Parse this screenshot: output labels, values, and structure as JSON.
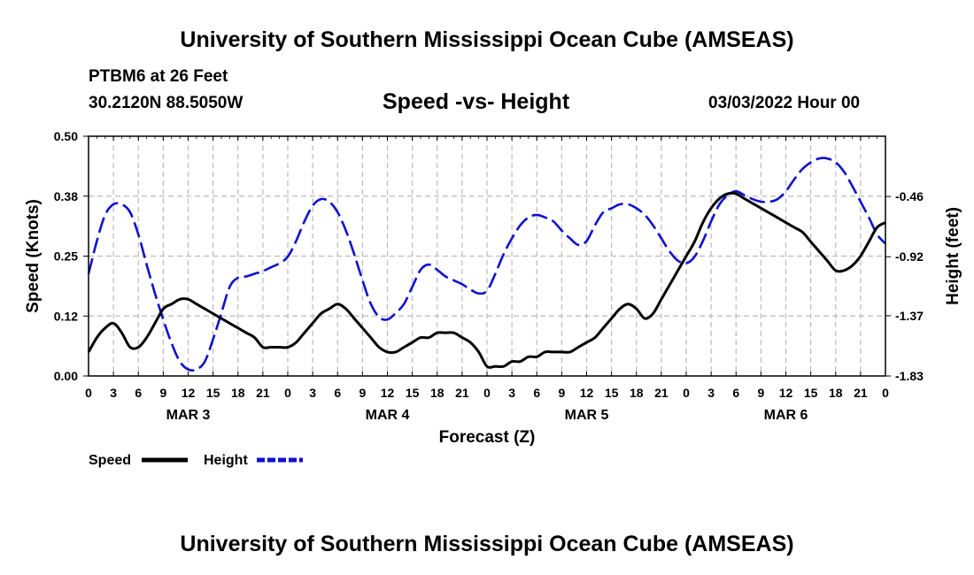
{
  "header": {
    "title": "University of Southern Mississippi Ocean Cube (AMSEAS)",
    "station": "PTBM6 at 26 Feet",
    "location": "30.2120N  88.5050W",
    "chart_title": "Speed -vs- Height",
    "datetime": "03/03/2022 Hour 00"
  },
  "footer": {
    "title": "University of Southern Mississippi Ocean Cube (AMSEAS)"
  },
  "colors": {
    "speed": "#000000",
    "height": "#1010d0",
    "grid": "#bbbbbb"
  },
  "chart_data": {
    "type": "line",
    "title": "Speed -vs- Height",
    "xlabel": "Forecast (Z)",
    "ylabel_left": "Speed (Knots)",
    "ylabel_right": "Height (feet)",
    "x_range_hours": [
      0,
      96
    ],
    "x_tick_hours": [
      0,
      3,
      6,
      9,
      12,
      15,
      18,
      21,
      24,
      27,
      30,
      33,
      36,
      39,
      42,
      45,
      48,
      51,
      54,
      57,
      60,
      63,
      66,
      69,
      72,
      75,
      78,
      81,
      84,
      87,
      90,
      93,
      96
    ],
    "x_tick_labels": [
      "0",
      "3",
      "6",
      "9",
      "12",
      "15",
      "18",
      "21",
      "0",
      "3",
      "6",
      "9",
      "12",
      "15",
      "18",
      "21",
      "0",
      "3",
      "6",
      "9",
      "12",
      "15",
      "18",
      "21",
      "0",
      "3",
      "6",
      "9",
      "12",
      "15",
      "18",
      "21",
      "0"
    ],
    "day_labels": [
      {
        "label": "MAR 3",
        "hour": 12
      },
      {
        "label": "MAR 4",
        "hour": 36
      },
      {
        "label": "MAR 5",
        "hour": 60
      },
      {
        "label": "MAR 6",
        "hour": 84
      }
    ],
    "y_left": {
      "range": [
        0,
        0.5
      ],
      "ticks": [
        0,
        0.125,
        0.25,
        0.375,
        0.5
      ],
      "tick_labels": [
        "0.00",
        "0.12",
        "0.25",
        "0.38",
        "0.50"
      ]
    },
    "y_right": {
      "range": [
        -1.83,
        0.0
      ],
      "ticks": [
        -1.83,
        -1.37,
        -0.92,
        -0.46
      ],
      "tick_labels": [
        "-1.83",
        "-1.37",
        "-0.92",
        "-0.46"
      ]
    },
    "grid": true,
    "legend_position": "bottom-left",
    "series": [
      {
        "name": "Speed",
        "axis": "left",
        "style": "solid",
        "x": [
          0,
          1,
          2,
          3,
          4,
          5,
          6,
          7,
          8,
          9,
          10,
          11,
          12,
          13,
          14,
          15,
          16,
          17,
          18,
          19,
          20,
          21,
          22,
          23,
          24,
          25,
          26,
          27,
          28,
          29,
          30,
          31,
          32,
          33,
          34,
          35,
          36,
          37,
          38,
          39,
          40,
          41,
          42,
          43,
          44,
          45,
          46,
          47,
          48,
          49,
          50,
          51,
          52,
          53,
          54,
          55,
          56,
          57,
          58,
          59,
          60,
          61,
          62,
          63,
          64,
          65,
          66,
          67,
          68,
          69,
          70,
          71,
          72,
          73,
          74,
          75,
          76,
          77,
          78,
          79,
          80,
          81,
          82,
          83,
          84,
          85,
          86,
          87,
          88,
          89,
          90,
          91,
          92,
          93,
          94,
          95,
          96
        ],
        "values": [
          0.05,
          0.08,
          0.1,
          0.11,
          0.09,
          0.06,
          0.06,
          0.08,
          0.11,
          0.14,
          0.15,
          0.16,
          0.16,
          0.15,
          0.14,
          0.13,
          0.12,
          0.11,
          0.1,
          0.09,
          0.08,
          0.06,
          0.06,
          0.06,
          0.06,
          0.07,
          0.09,
          0.11,
          0.13,
          0.14,
          0.15,
          0.14,
          0.12,
          0.1,
          0.08,
          0.06,
          0.05,
          0.05,
          0.06,
          0.07,
          0.08,
          0.08,
          0.09,
          0.09,
          0.09,
          0.08,
          0.07,
          0.05,
          0.02,
          0.02,
          0.02,
          0.03,
          0.03,
          0.04,
          0.04,
          0.05,
          0.05,
          0.05,
          0.05,
          0.06,
          0.07,
          0.08,
          0.1,
          0.12,
          0.14,
          0.15,
          0.14,
          0.12,
          0.13,
          0.16,
          0.19,
          0.22,
          0.25,
          0.28,
          0.32,
          0.35,
          0.37,
          0.38,
          0.38,
          0.37,
          0.36,
          0.35,
          0.34,
          0.33,
          0.32,
          0.31,
          0.3,
          0.28,
          0.26,
          0.24,
          0.22,
          0.22,
          0.23,
          0.25,
          0.28,
          0.31,
          0.32
        ]
      },
      {
        "name": "Height",
        "axis": "right",
        "style": "dashed",
        "x": [
          0,
          1,
          2,
          3,
          4,
          5,
          6,
          7,
          8,
          9,
          10,
          11,
          12,
          13,
          14,
          15,
          16,
          17,
          18,
          19,
          20,
          21,
          22,
          23,
          24,
          25,
          26,
          27,
          28,
          29,
          30,
          31,
          32,
          33,
          34,
          35,
          36,
          37,
          38,
          39,
          40,
          41,
          42,
          43,
          44,
          45,
          46,
          47,
          48,
          49,
          50,
          51,
          52,
          53,
          54,
          55,
          56,
          57,
          58,
          59,
          60,
          61,
          62,
          63,
          64,
          65,
          66,
          67,
          68,
          69,
          70,
          71,
          72,
          73,
          74,
          75,
          76,
          77,
          78,
          79,
          80,
          81,
          82,
          83,
          84,
          85,
          86,
          87,
          88,
          89,
          90,
          91,
          92,
          93,
          94,
          95,
          96
        ],
        "values": [
          -1.05,
          -0.8,
          -0.6,
          -0.52,
          -0.52,
          -0.58,
          -0.75,
          -0.98,
          -1.2,
          -1.4,
          -1.58,
          -1.72,
          -1.78,
          -1.78,
          -1.72,
          -1.55,
          -1.35,
          -1.15,
          -1.08,
          -1.07,
          -1.05,
          -1.03,
          -1.0,
          -0.97,
          -0.92,
          -0.8,
          -0.65,
          -0.53,
          -0.48,
          -0.5,
          -0.58,
          -0.72,
          -0.9,
          -1.1,
          -1.28,
          -1.38,
          -1.4,
          -1.35,
          -1.28,
          -1.15,
          -1.02,
          -0.98,
          -1.02,
          -1.07,
          -1.1,
          -1.13,
          -1.17,
          -1.2,
          -1.18,
          -1.05,
          -0.9,
          -0.78,
          -0.68,
          -0.62,
          -0.6,
          -0.62,
          -0.65,
          -0.72,
          -0.78,
          -0.83,
          -0.8,
          -0.68,
          -0.58,
          -0.55,
          -0.52,
          -0.52,
          -0.55,
          -0.6,
          -0.68,
          -0.78,
          -0.88,
          -0.95,
          -0.97,
          -0.92,
          -0.8,
          -0.65,
          -0.52,
          -0.45,
          -0.42,
          -0.45,
          -0.48,
          -0.5,
          -0.5,
          -0.48,
          -0.42,
          -0.33,
          -0.25,
          -0.2,
          -0.17,
          -0.17,
          -0.2,
          -0.27,
          -0.38,
          -0.5,
          -0.62,
          -0.75,
          -0.82
        ]
      }
    ]
  }
}
